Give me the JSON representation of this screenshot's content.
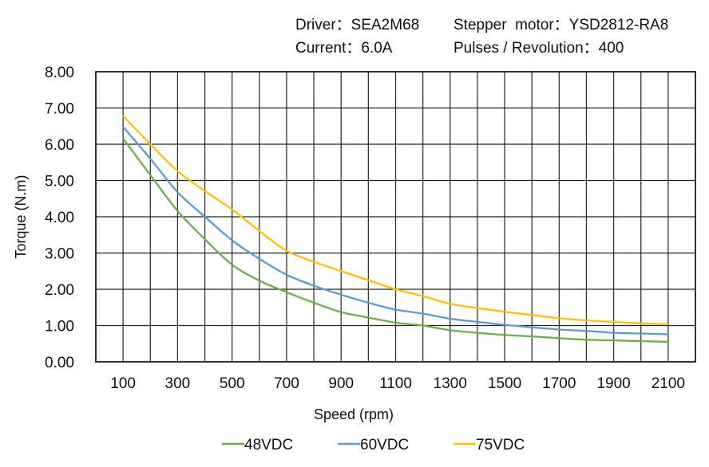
{
  "header": {
    "driver": "Driver：SEA2M68",
    "motor": "Stepper  motor：YSD2812-RA8",
    "current": "Current：6.0A",
    "pulses": "Pulses / Revolution：400"
  },
  "chart_data": {
    "type": "line",
    "title": "",
    "xlabel": "Speed  (rpm)",
    "ylabel": "Torque (N.m)",
    "xlim": [
      0,
      2200
    ],
    "ylim": [
      0,
      8
    ],
    "grid": true,
    "legend_position": "bottom",
    "x_ticks": [
      "100",
      "300",
      "500",
      "700",
      "900",
      "1100",
      "1300",
      "1500",
      "1700",
      "1900",
      "2100"
    ],
    "y_ticks": [
      "0.00",
      "1.00",
      "2.00",
      "3.00",
      "4.00",
      "5.00",
      "6.00",
      "7.00",
      "8.00"
    ],
    "x": [
      100,
      200,
      300,
      400,
      500,
      600,
      700,
      800,
      900,
      1000,
      1100,
      1200,
      1300,
      1400,
      1500,
      1600,
      1700,
      1800,
      1900,
      2000,
      2100
    ],
    "series": [
      {
        "name": "48VDC",
        "color": "#70ad47",
        "values": [
          6.16,
          5.15,
          4.16,
          3.38,
          2.68,
          2.24,
          1.92,
          1.63,
          1.37,
          1.22,
          1.08,
          1.0,
          0.87,
          0.8,
          0.74,
          0.7,
          0.65,
          0.61,
          0.59,
          0.57,
          0.55
        ]
      },
      {
        "name": "60VDC",
        "color": "#5b9bd5",
        "values": [
          6.48,
          5.6,
          4.68,
          4.0,
          3.35,
          2.84,
          2.4,
          2.1,
          1.85,
          1.63,
          1.44,
          1.33,
          1.19,
          1.1,
          1.02,
          0.95,
          0.89,
          0.85,
          0.8,
          0.78,
          0.76
        ]
      },
      {
        "name": "75VDC",
        "color": "#ffc000",
        "values": [
          6.78,
          6.0,
          5.26,
          4.71,
          4.2,
          3.61,
          3.06,
          2.76,
          2.5,
          2.25,
          2.0,
          1.81,
          1.6,
          1.48,
          1.38,
          1.29,
          1.2,
          1.14,
          1.1,
          1.06,
          1.03
        ]
      }
    ]
  }
}
